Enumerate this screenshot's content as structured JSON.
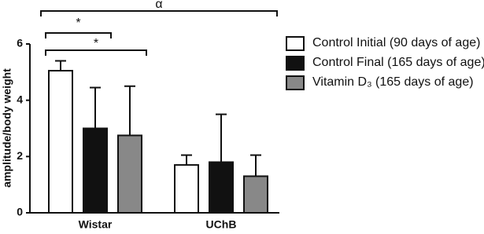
{
  "chart_data": {
    "type": "bar",
    "y_label": "amplitude/body weight",
    "categories": [
      "Wistar",
      "UChB"
    ],
    "series": [
      {
        "name": "Control Initial (90 days of age)",
        "color": "#ffffff",
        "values": [
          5.05,
          1.7
        ],
        "errors": [
          0.35,
          0.35
        ]
      },
      {
        "name": "Control Final (165 days of age)",
        "color": "#111111",
        "values": [
          3.0,
          1.8
        ],
        "errors": [
          1.45,
          1.7
        ]
      },
      {
        "name": "Vitamin D₃ (165 days of age)",
        "color": "#888888",
        "values": [
          2.75,
          1.3
        ],
        "errors": [
          1.75,
          0.75
        ]
      }
    ],
    "ylim": [
      0,
      6
    ],
    "yticks": [
      0,
      2,
      4,
      6
    ],
    "annotations": [
      {
        "text": "α"
      },
      {
        "text": "*"
      },
      {
        "text": "*"
      }
    ]
  }
}
